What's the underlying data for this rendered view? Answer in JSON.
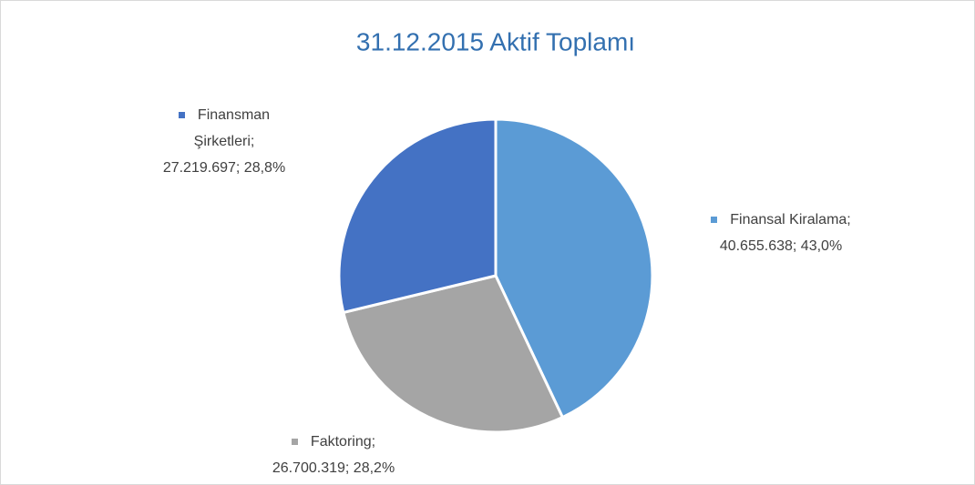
{
  "chart_data": {
    "type": "pie",
    "title": "31.12.2015 Aktif Toplamı",
    "categories": [
      "Finansal Kiralama;",
      "Faktoring;",
      "Finansman Şirketleri;"
    ],
    "values": [
      40655638,
      26700319,
      27219697
    ],
    "value_labels": [
      "40.655.638;",
      "26.700.319;",
      "27.219.697;"
    ],
    "percentages": [
      43.0,
      28.2,
      28.8
    ],
    "percentage_labels": [
      "43,0%",
      "28,2%",
      "28,8%"
    ],
    "colors": [
      "#5b9bd5",
      "#a5a5a5",
      "#4472c4"
    ]
  }
}
